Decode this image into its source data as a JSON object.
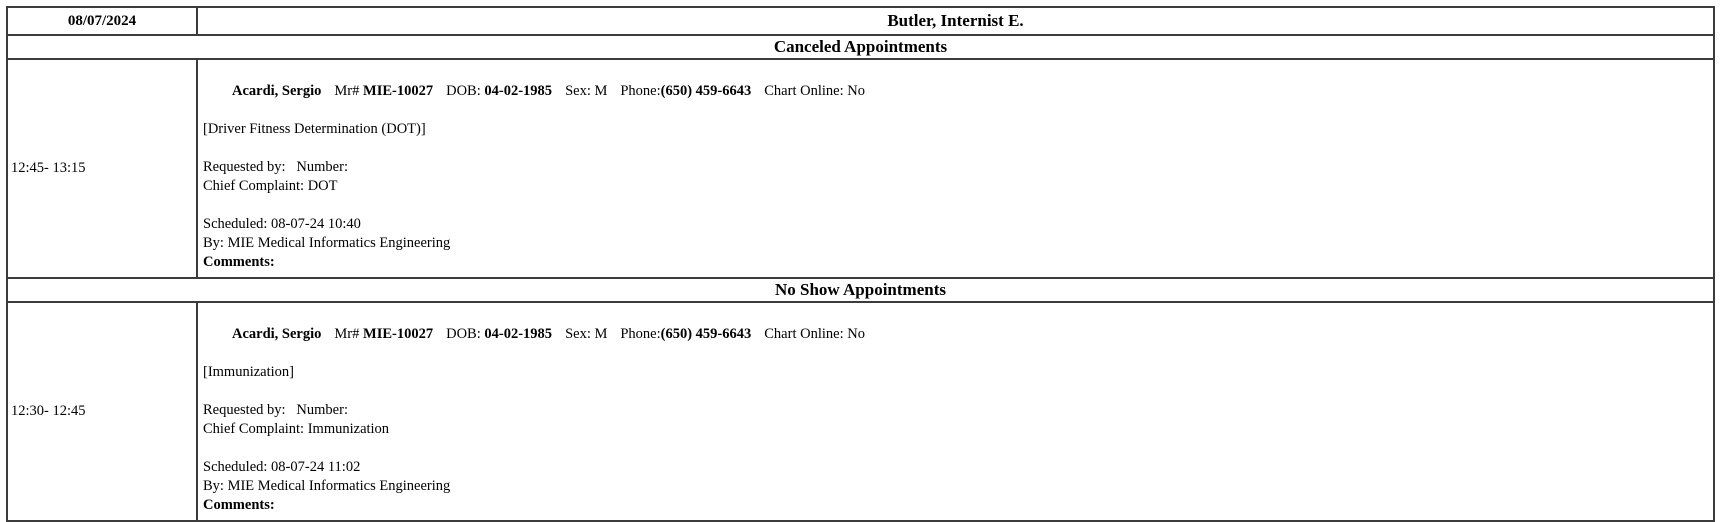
{
  "header": {
    "date": "08/07/2024",
    "provider": "Butler, Internist E."
  },
  "sections": [
    {
      "title": "Canceled Appointments",
      "appointments": [
        {
          "time": "12:45- 13:15",
          "patient": {
            "name": "Acardi, Sergio",
            "mr_label": "Mr# ",
            "mr_value": "MIE-10027",
            "dob_label": "DOB: ",
            "dob_value": "04-02-1985",
            "sex": "Sex: M",
            "phone_label": "Phone:",
            "phone_value": "(650) 459-6643",
            "chart_online": "Chart Online: No"
          },
          "appointment_type": "[Driver Fitness Determination (DOT)]",
          "requested_line": "Requested by:   Number:",
          "chief_complaint": "Chief Complaint: DOT",
          "scheduled": "Scheduled: 08-07-24 10:40",
          "scheduled_by": "By: MIE Medical Informatics Engineering",
          "comments_label": "Comments:"
        }
      ]
    },
    {
      "title": "No Show Appointments",
      "appointments": [
        {
          "time": "12:30- 12:45",
          "patient": {
            "name": "Acardi, Sergio",
            "mr_label": "Mr# ",
            "mr_value": "MIE-10027",
            "dob_label": "DOB: ",
            "dob_value": "04-02-1985",
            "sex": "Sex: M",
            "phone_label": "Phone:",
            "phone_value": "(650) 459-6643",
            "chart_online": "Chart Online: No"
          },
          "appointment_type": "[Immunization]",
          "requested_line": "Requested by:   Number:",
          "chief_complaint": "Chief Complaint: Immunization",
          "scheduled": "Scheduled: 08-07-24 11:02",
          "scheduled_by": "By: MIE Medical Informatics Engineering",
          "comments_label": "Comments:"
        }
      ]
    }
  ],
  "colors": {
    "border": "#3c3c3c",
    "text": "#000000",
    "background": "#ffffff"
  }
}
